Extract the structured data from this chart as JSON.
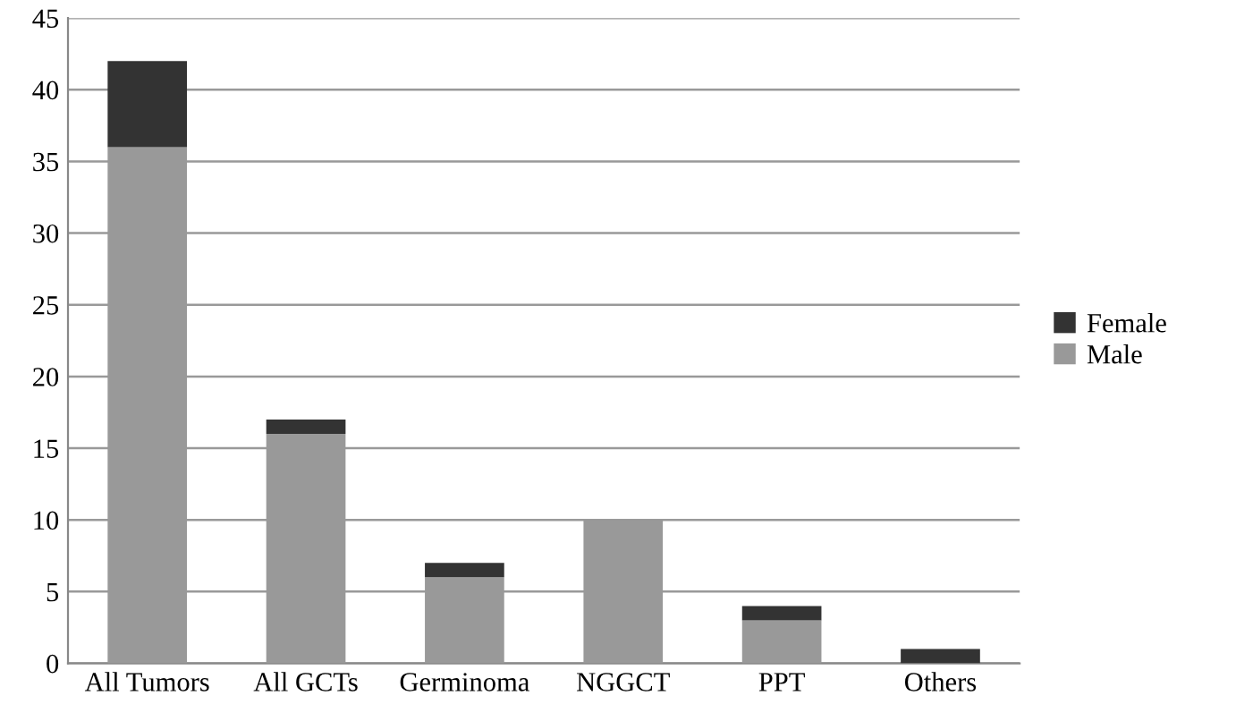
{
  "chart_data": {
    "type": "bar",
    "stacked": true,
    "categories": [
      "All Tumors",
      "All GCTs",
      "Germinoma",
      "NGGCT",
      "PPT",
      "Others"
    ],
    "series": [
      {
        "name": "Male",
        "color": "#999999",
        "values": [
          36,
          16,
          6,
          10,
          3,
          0
        ]
      },
      {
        "name": "Female",
        "color": "#333333",
        "values": [
          6,
          1,
          1,
          0,
          1,
          1
        ]
      }
    ],
    "ylim": [
      0,
      45
    ],
    "yticks": [
      0,
      5,
      10,
      15,
      20,
      25,
      30,
      35,
      40,
      45
    ],
    "grid": "y",
    "legend": "right"
  }
}
